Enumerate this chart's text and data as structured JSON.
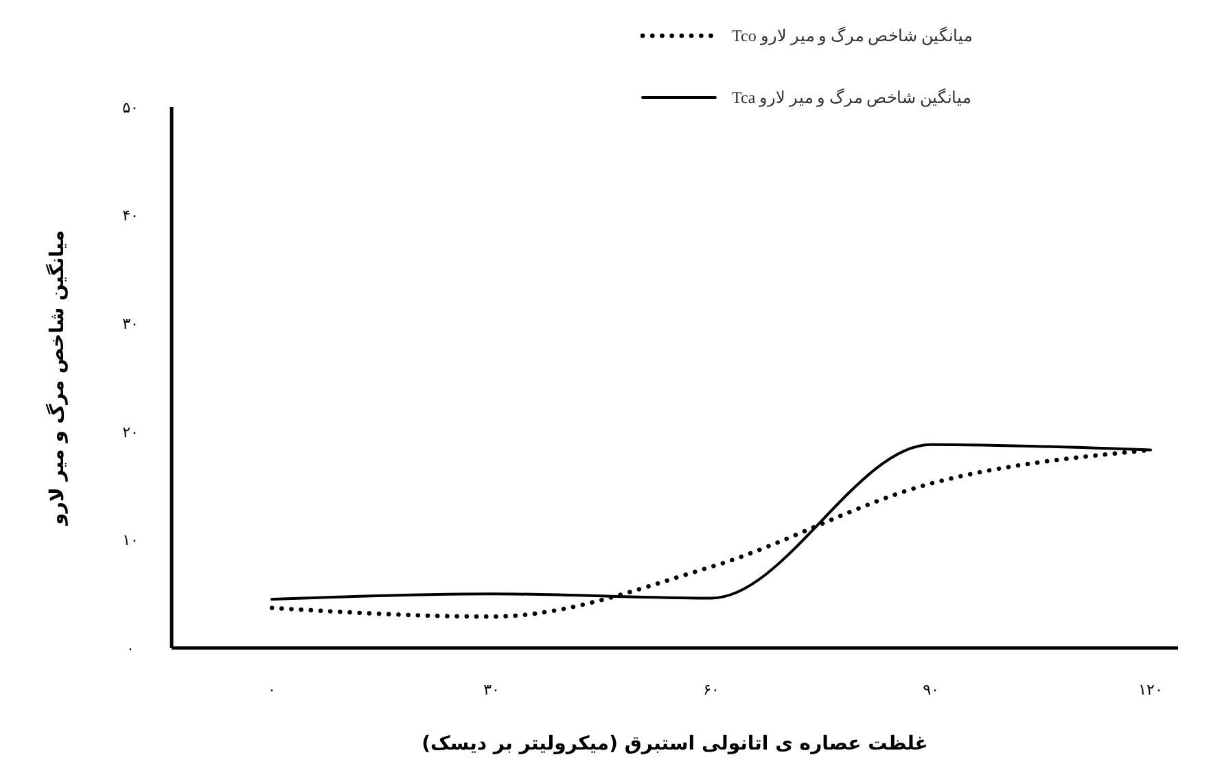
{
  "chart_data": {
    "type": "line",
    "xlabel": "غلظت عصاره ی اتانولی استبرق (میکرولیتر بر دیسک)",
    "ylabel": "میانگین شاخص مرگ و میر لارو",
    "categories": [
      "۰",
      "۳۰",
      "۶۰",
      "۹۰",
      "۱۲۰"
    ],
    "ylim": [
      0,
      50
    ],
    "yticks": [
      {
        "value": 0,
        "label": "۰"
      },
      {
        "value": 10,
        "label": "۱۰"
      },
      {
        "value": 20,
        "label": "۲۰"
      },
      {
        "value": 30,
        "label": "۳۰"
      },
      {
        "value": 40,
        "label": "۴۰"
      },
      {
        "value": 50,
        "label": "۵۰"
      }
    ],
    "series": [
      {
        "name": "میانگین شاخص مرگ و میر لارو Tco",
        "color": "#000000",
        "line_style": "dotted",
        "values": [
          3.7,
          2.9,
          7.5,
          15.2,
          18.3
        ]
      },
      {
        "name": "میانگین شاخص مرگ و میر لارو Tca",
        "color": "#000000",
        "line_style": "solid",
        "values": [
          4.5,
          5.0,
          4.6,
          18.8,
          18.3
        ]
      }
    ],
    "legend": "top right",
    "grid": false
  }
}
